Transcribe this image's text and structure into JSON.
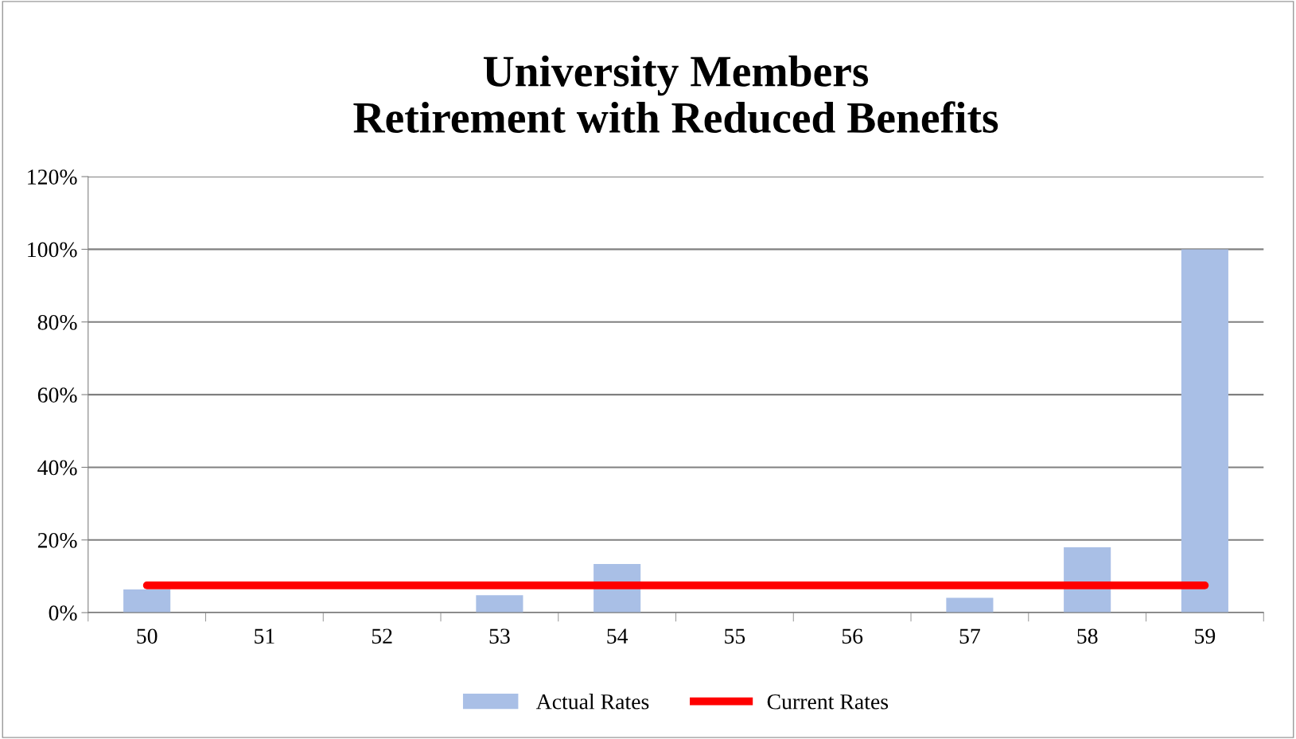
{
  "chart_data": {
    "type": "bar",
    "title": "University Members\nRetirement with Reduced Benefits",
    "categories": [
      "50",
      "51",
      "52",
      "53",
      "54",
      "55",
      "56",
      "57",
      "58",
      "59"
    ],
    "series": [
      {
        "name": "Actual Rates",
        "color": "#a9bfe6",
        "values": [
          6.4,
          0,
          0,
          4.8,
          13.4,
          0,
          0,
          4.1,
          18,
          100
        ]
      },
      {
        "name": "Current Rates",
        "type": "line",
        "color": "#ff0000",
        "values": [
          7.5,
          7.5,
          7.5,
          7.5,
          7.5,
          7.5,
          7.5,
          7.5,
          7.5,
          7.5
        ]
      }
    ],
    "ylim": [
      0,
      120
    ],
    "yticks": [
      {
        "value": 0,
        "label": "0%"
      },
      {
        "value": 20,
        "label": "20%"
      },
      {
        "value": 40,
        "label": "40%"
      },
      {
        "value": 60,
        "label": "60%"
      },
      {
        "value": 80,
        "label": "80%"
      },
      {
        "value": 100,
        "label": "100%"
      },
      {
        "value": 120,
        "label": "120%"
      }
    ],
    "grid": "y",
    "legend": "bottom",
    "marker": "none",
    "line_style": "solid"
  }
}
